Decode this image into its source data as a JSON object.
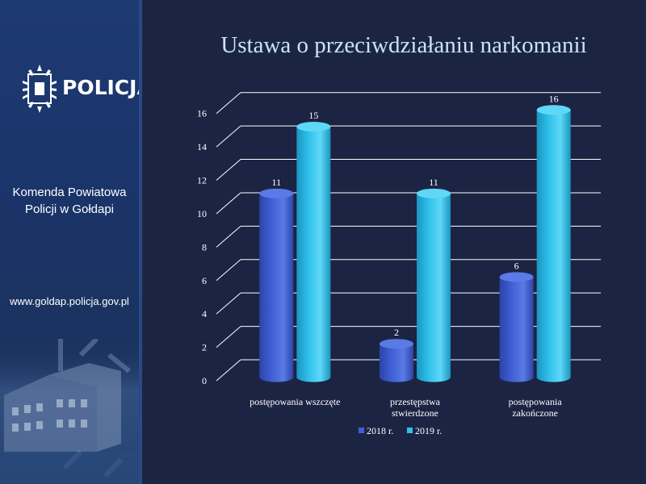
{
  "sidebar": {
    "logo_icon": "police-star-icon",
    "logo_text": "POLICJA",
    "unit_name_line1": "Komenda Powiatowa",
    "unit_name_line2": "Policji w Gołdapi",
    "website": "www.goldap.policja.gov.pl"
  },
  "colors": {
    "background": "#1c2444",
    "sidebar": "#1e3a73",
    "series_2018": "#3f5fd4",
    "series_2019": "#2fc0ea"
  },
  "chart_data": {
    "type": "bar",
    "title": "Ustawa o przeciwdziałaniu narkomanii",
    "categories": [
      [
        "postępowania wszczęte"
      ],
      [
        "przestępstwa",
        "stwierdzone"
      ],
      [
        "postępowania",
        "zakończone"
      ]
    ],
    "series": [
      {
        "name": "2018 r.",
        "values": [
          11,
          2,
          6
        ]
      },
      {
        "name": "2019 r.",
        "values": [
          15,
          11,
          16
        ]
      }
    ],
    "yticks": [
      0,
      2,
      4,
      6,
      8,
      10,
      12,
      14,
      16
    ],
    "ylim": [
      0,
      17
    ],
    "grid": true,
    "legend_position": "bottom",
    "data_labels": true
  }
}
